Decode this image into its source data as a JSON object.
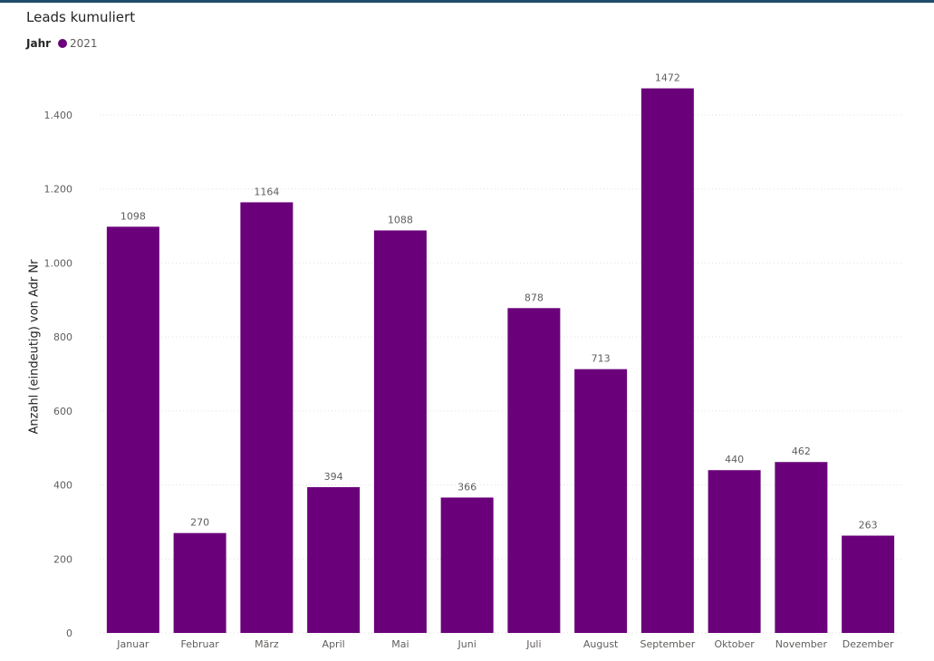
{
  "title": "Leads kumuliert",
  "legend": {
    "title": "Jahr",
    "items": [
      {
        "label": "2021",
        "color": "#6b007b"
      }
    ]
  },
  "chart_data": {
    "type": "bar",
    "title": "Leads kumuliert",
    "xlabel": "",
    "ylabel": "Anzahl (eindeutig) von Adr Nr",
    "categories": [
      "Januar",
      "Februar",
      "März",
      "April",
      "Mai",
      "Juni",
      "Juli",
      "August",
      "September",
      "Oktober",
      "November",
      "Dezember"
    ],
    "series": [
      {
        "name": "2021",
        "values": [
          1098,
          270,
          1164,
          394,
          1088,
          366,
          878,
          713,
          1472,
          440,
          462,
          263
        ],
        "color": "#6b007b"
      }
    ],
    "ylim": [
      0,
      1400
    ],
    "yticks": [
      0,
      200,
      400,
      600,
      800,
      1000,
      1200,
      1400
    ],
    "ytick_labels": [
      "0",
      "200",
      "400",
      "600",
      "800",
      "1.000",
      "1.200",
      "1.400"
    ],
    "grid": true,
    "legend_position": "top-left",
    "data_labels": true
  }
}
